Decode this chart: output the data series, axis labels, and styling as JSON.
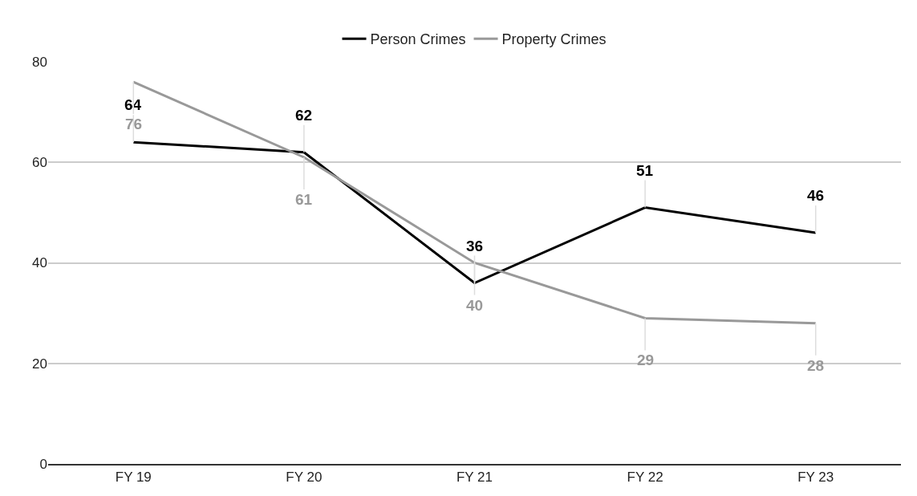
{
  "chart_data": {
    "type": "line",
    "categories": [
      "FY 19",
      "FY 20",
      "FY 21",
      "FY 22",
      "FY 23"
    ],
    "series": [
      {
        "name": "Person Crimes",
        "color": "#000000",
        "values": [
          64,
          62,
          36,
          51,
          46
        ]
      },
      {
        "name": "Property Crimes",
        "color": "#999999",
        "values": [
          76,
          61,
          40,
          29,
          28
        ]
      }
    ],
    "ylim": [
      0,
      80
    ],
    "yticks": [
      0,
      20,
      40,
      60,
      80
    ],
    "grid": "y",
    "legend": "top",
    "data_labels": true,
    "marker": "none",
    "line_style": "solid"
  }
}
